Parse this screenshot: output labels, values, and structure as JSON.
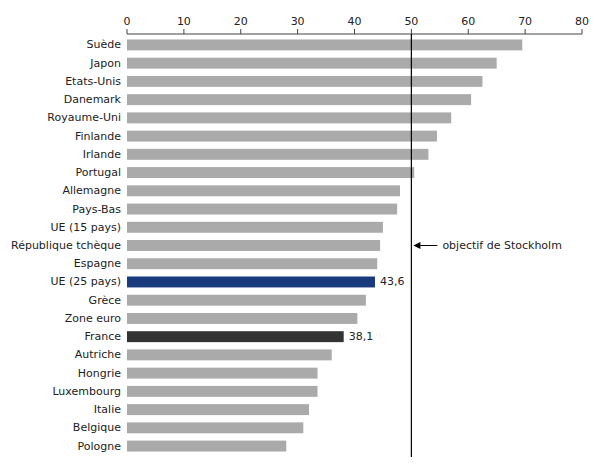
{
  "chart_data": {
    "type": "bar",
    "orientation": "horizontal",
    "categories": [
      "Pologne",
      "Belgique",
      "Italie",
      "Luxembourg",
      "Hongrie",
      "Autriche",
      "France",
      "Zone euro",
      "Grèce",
      "UE (25 pays)",
      "Espagne",
      "République tchèque",
      "UE (15 pays)",
      "Pays-Bas",
      "Allemagne",
      "Portugal",
      "Irlande",
      "Finlande",
      "Royaume-Uni",
      "Danemark",
      "Etats-Unis",
      "Japon",
      "Suède"
    ],
    "values": [
      28.0,
      31.0,
      32.0,
      33.5,
      33.5,
      36.0,
      38.1,
      40.5,
      42.0,
      43.6,
      44.0,
      44.5,
      45.0,
      47.5,
      48.0,
      50.5,
      53.0,
      54.5,
      57.0,
      60.5,
      62.5,
      65.0,
      69.5
    ],
    "value_labels": [
      null,
      null,
      null,
      null,
      null,
      null,
      "38,1",
      null,
      null,
      "43,6",
      null,
      null,
      null,
      null,
      null,
      null,
      null,
      null,
      null,
      null,
      null,
      null,
      null
    ],
    "colors": [
      "#aaaaaa",
      "#aaaaaa",
      "#aaaaaa",
      "#aaaaaa",
      "#aaaaaa",
      "#aaaaaa",
      "#333333",
      "#aaaaaa",
      "#aaaaaa",
      "#1a3a7e",
      "#aaaaaa",
      "#aaaaaa",
      "#aaaaaa",
      "#aaaaaa",
      "#aaaaaa",
      "#aaaaaa",
      "#aaaaaa",
      "#aaaaaa",
      "#aaaaaa",
      "#aaaaaa",
      "#aaaaaa",
      "#aaaaaa",
      "#aaaaaa"
    ],
    "xlim": [
      0,
      80
    ],
    "xticks": [
      0,
      10,
      20,
      30,
      40,
      50,
      60,
      70,
      80
    ],
    "reference_lines": [
      {
        "value": 50,
        "label": "objectif de Stockholm"
      }
    ]
  }
}
